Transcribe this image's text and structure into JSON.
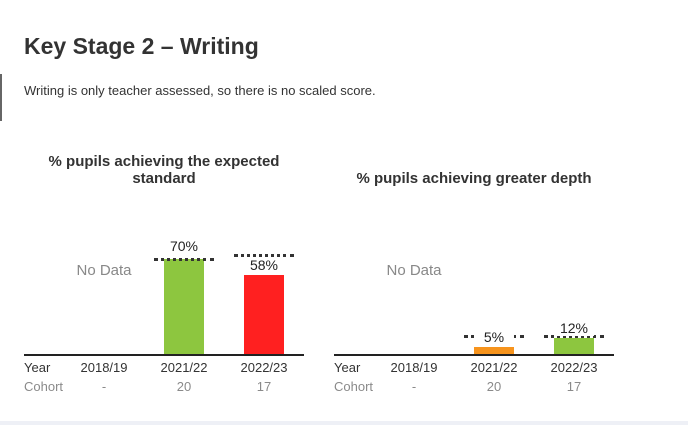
{
  "page": {
    "title": "Key Stage 2 – Writing",
    "note": "Writing is only teacher assessed, so there is no scaled score."
  },
  "labels": {
    "year": "Year",
    "cohort": "Cohort",
    "no_data": "No Data"
  },
  "colors": {
    "green": "#8dc63f",
    "red": "#ff2020",
    "orange": "#f7941d"
  },
  "chart_data": [
    {
      "type": "bar",
      "title": "% pupils achieving the expected standard",
      "categories": [
        "2018/19",
        "2021/22",
        "2022/23"
      ],
      "values": [
        null,
        70,
        58
      ],
      "value_labels": [
        "",
        "70%",
        "58%"
      ],
      "cohort": [
        "-",
        "20",
        "17"
      ],
      "bar_colors": [
        "",
        "#8dc63f",
        "#ff2020"
      ],
      "benchmark": [
        null,
        70,
        73
      ],
      "ylim": [
        0,
        100
      ]
    },
    {
      "type": "bar",
      "title": "% pupils achieving greater depth",
      "categories": [
        "2018/19",
        "2021/22",
        "2022/23"
      ],
      "values": [
        null,
        5,
        12
      ],
      "value_labels": [
        "",
        "5%",
        "12%"
      ],
      "cohort": [
        "-",
        "20",
        "17"
      ],
      "bar_colors": [
        "",
        "#f7941d",
        "#8dc63f"
      ],
      "benchmark": [
        null,
        13,
        13
      ],
      "ylim": [
        0,
        100
      ]
    }
  ]
}
